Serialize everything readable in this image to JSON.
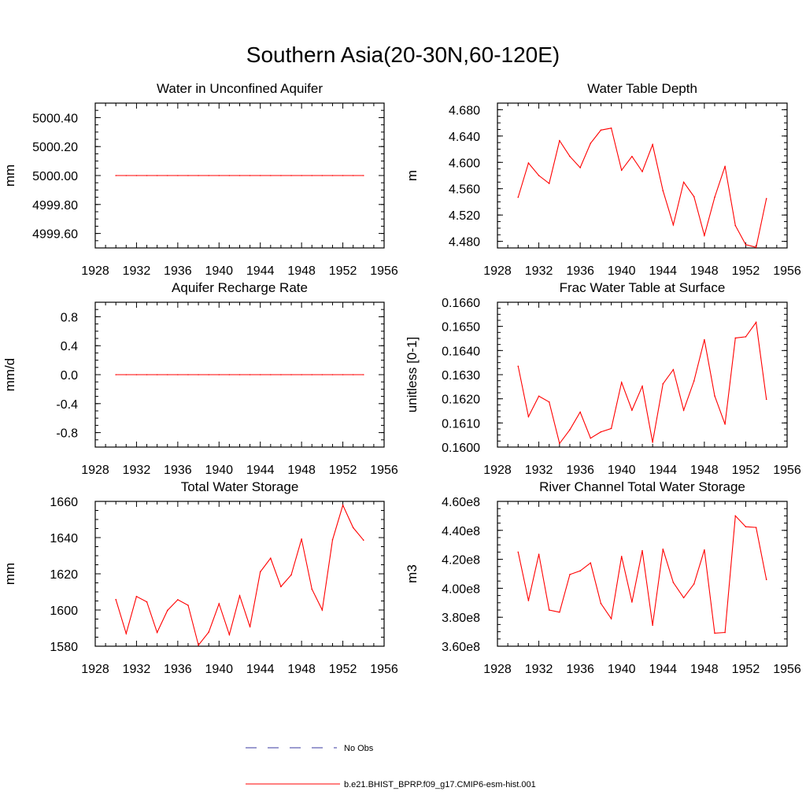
{
  "title": "Southern Asia(20-30N,60-120E)",
  "colors": {
    "model": "#ff0000",
    "obs": "#3a3aa0",
    "frame": "#000000"
  },
  "legend": [
    {
      "label": "No Obs",
      "style": "dashed",
      "color": "#3a3aa0"
    },
    {
      "label": "b.e21.BHIST_BPRP.f09_g17.CMIP6-esm-hist.001",
      "style": "solid",
      "color": "#ff0000"
    }
  ],
  "chart_data": [
    {
      "type": "line",
      "title": "Water in Unconfined Aquifer",
      "ylabel": "mm",
      "xlim": [
        1928,
        1956
      ],
      "ylim": [
        4999.5,
        5000.5
      ],
      "xticks": [
        "1928",
        "1932",
        "1936",
        "1940",
        "1944",
        "1948",
        "1952",
        "1956"
      ],
      "yticks": [
        {
          "v": 4999.6,
          "label": "4999.60"
        },
        {
          "v": 4999.8,
          "label": "4999.80"
        },
        {
          "v": 5000.0,
          "label": "5000.00"
        },
        {
          "v": 5000.2,
          "label": "5000.20"
        },
        {
          "v": 5000.4,
          "label": "5000.40"
        }
      ],
      "series": [
        {
          "name": "b.e21.BHIST_BPRP.f09_g17.CMIP6-esm-hist.001",
          "x": [
            1930,
            1931,
            1932,
            1933,
            1934,
            1935,
            1936,
            1937,
            1938,
            1939,
            1940,
            1941,
            1942,
            1943,
            1944,
            1945,
            1946,
            1947,
            1948,
            1949,
            1950,
            1951,
            1952,
            1953,
            1954
          ],
          "y": [
            5000,
            5000,
            5000,
            5000,
            5000,
            5000,
            5000,
            5000,
            5000,
            5000,
            5000,
            5000,
            5000,
            5000,
            5000,
            5000,
            5000,
            5000,
            5000,
            5000,
            5000,
            5000,
            5000,
            5000,
            5000
          ]
        }
      ]
    },
    {
      "type": "line",
      "title": "Water Table Depth",
      "ylabel": "m",
      "xlim": [
        1928,
        1956
      ],
      "ylim": [
        4.47,
        4.69
      ],
      "xticks": [
        "1928",
        "1932",
        "1936",
        "1940",
        "1944",
        "1948",
        "1952",
        "1956"
      ],
      "yticks": [
        {
          "v": 4.48,
          "label": "4.480"
        },
        {
          "v": 4.52,
          "label": "4.520"
        },
        {
          "v": 4.56,
          "label": "4.560"
        },
        {
          "v": 4.6,
          "label": "4.600"
        },
        {
          "v": 4.64,
          "label": "4.640"
        },
        {
          "v": 4.68,
          "label": "4.680"
        }
      ],
      "series": [
        {
          "name": "b.e21.BHIST_BPRP.f09_g17.CMIP6-esm-hist.001",
          "x": [
            1930,
            1931,
            1932,
            1933,
            1934,
            1935,
            1936,
            1937,
            1938,
            1939,
            1940,
            1941,
            1942,
            1943,
            1944,
            1945,
            1946,
            1947,
            1948,
            1949,
            1950,
            1951,
            1952,
            1953,
            1954
          ],
          "y": [
            4.547,
            4.599,
            4.58,
            4.568,
            4.633,
            4.609,
            4.592,
            4.629,
            4.649,
            4.652,
            4.588,
            4.609,
            4.586,
            4.627,
            4.557,
            4.505,
            4.57,
            4.548,
            4.489,
            4.547,
            4.594,
            4.504,
            4.475,
            4.471,
            4.545
          ]
        }
      ]
    },
    {
      "type": "line",
      "title": "Aquifer Recharge Rate",
      "ylabel": "mm/d",
      "xlim": [
        1928,
        1956
      ],
      "ylim": [
        -1.0,
        1.0
      ],
      "xticks": [
        "1928",
        "1932",
        "1936",
        "1940",
        "1944",
        "1948",
        "1952",
        "1956"
      ],
      "yticks": [
        {
          "v": -0.8,
          "label": "-0.8"
        },
        {
          "v": -0.4,
          "label": "-0.4"
        },
        {
          "v": 0.0,
          "label": "0.0"
        },
        {
          "v": 0.4,
          "label": "0.4"
        },
        {
          "v": 0.8,
          "label": "0.8"
        }
      ],
      "series": [
        {
          "name": "b.e21.BHIST_BPRP.f09_g17.CMIP6-esm-hist.001",
          "x": [
            1930,
            1931,
            1932,
            1933,
            1934,
            1935,
            1936,
            1937,
            1938,
            1939,
            1940,
            1941,
            1942,
            1943,
            1944,
            1945,
            1946,
            1947,
            1948,
            1949,
            1950,
            1951,
            1952,
            1953,
            1954
          ],
          "y": [
            0,
            0,
            0,
            0,
            0,
            0,
            0,
            0,
            0,
            0,
            0,
            0,
            0,
            0,
            0,
            0,
            0,
            0,
            0,
            0,
            0,
            0,
            0,
            0,
            0
          ]
        }
      ]
    },
    {
      "type": "line",
      "title": "Frac Water Table at Surface",
      "ylabel": "unitless [0-1]",
      "xlim": [
        1928,
        1956
      ],
      "ylim": [
        0.16,
        0.166
      ],
      "xticks": [
        "1928",
        "1932",
        "1936",
        "1940",
        "1944",
        "1948",
        "1952",
        "1956"
      ],
      "yticks": [
        {
          "v": 0.16,
          "label": "0.1600"
        },
        {
          "v": 0.161,
          "label": "0.1610"
        },
        {
          "v": 0.162,
          "label": "0.1620"
        },
        {
          "v": 0.163,
          "label": "0.1630"
        },
        {
          "v": 0.164,
          "label": "0.1640"
        },
        {
          "v": 0.165,
          "label": "0.1650"
        },
        {
          "v": 0.166,
          "label": "0.1660"
        }
      ],
      "series": [
        {
          "name": "b.e21.BHIST_BPRP.f09_g17.CMIP6-esm-hist.001",
          "x": [
            1930,
            1931,
            1932,
            1933,
            1934,
            1935,
            1936,
            1937,
            1938,
            1939,
            1940,
            1941,
            1942,
            1943,
            1944,
            1945,
            1946,
            1947,
            1948,
            1949,
            1950,
            1951,
            1952,
            1953,
            1954
          ],
          "y": [
            0.16335,
            0.16126,
            0.16211,
            0.16187,
            0.16015,
            0.16072,
            0.16145,
            0.16037,
            0.16063,
            0.16077,
            0.16268,
            0.16153,
            0.16252,
            0.1602,
            0.16262,
            0.16321,
            0.16153,
            0.16274,
            0.16445,
            0.16212,
            0.16095,
            0.16452,
            0.16457,
            0.16517,
            0.16198
          ]
        }
      ]
    },
    {
      "type": "line",
      "title": "Total Water Storage",
      "ylabel": "mm",
      "xlim": [
        1928,
        1956
      ],
      "ylim": [
        1580,
        1660
      ],
      "xticks": [
        "1928",
        "1932",
        "1936",
        "1940",
        "1944",
        "1948",
        "1952",
        "1956"
      ],
      "yticks": [
        {
          "v": 1580,
          "label": "1580"
        },
        {
          "v": 1600,
          "label": "1600"
        },
        {
          "v": 1620,
          "label": "1620"
        },
        {
          "v": 1640,
          "label": "1640"
        },
        {
          "v": 1660,
          "label": "1660"
        }
      ],
      "series": [
        {
          "name": "b.e21.BHIST_BPRP.f09_g17.CMIP6-esm-hist.001",
          "x": [
            1930,
            1931,
            1932,
            1933,
            1934,
            1935,
            1936,
            1937,
            1938,
            1939,
            1940,
            1941,
            1942,
            1943,
            1944,
            1945,
            1946,
            1947,
            1948,
            1949,
            1950,
            1951,
            1952,
            1953,
            1954
          ],
          "y": [
            1605.8,
            1587.0,
            1607.5,
            1604.5,
            1587.6,
            1599.8,
            1605.7,
            1602.6,
            1580.6,
            1587.8,
            1603.5,
            1586.4,
            1607.9,
            1590.7,
            1621.1,
            1628.6,
            1612.9,
            1619.4,
            1639.2,
            1611.5,
            1600.0,
            1638.8,
            1657.9,
            1645.5,
            1638.6
          ]
        }
      ]
    },
    {
      "type": "line",
      "title": "River Channel Total Water Storage",
      "ylabel": "m3",
      "xlim": [
        1928,
        1956
      ],
      "ylim": [
        360000000.0,
        460000000.0
      ],
      "xticks": [
        "1928",
        "1932",
        "1936",
        "1940",
        "1944",
        "1948",
        "1952",
        "1956"
      ],
      "yticks": [
        {
          "v": 360000000.0,
          "label": "3.60e8"
        },
        {
          "v": 380000000.0,
          "label": "3.80e8"
        },
        {
          "v": 400000000.0,
          "label": "4.00e8"
        },
        {
          "v": 420000000.0,
          "label": "4.20e8"
        },
        {
          "v": 440000000.0,
          "label": "4.40e8"
        },
        {
          "v": 460000000.0,
          "label": "4.60e8"
        }
      ],
      "series": [
        {
          "name": "b.e21.BHIST_BPRP.f09_g17.CMIP6-esm-hist.001",
          "x": [
            1930,
            1931,
            1932,
            1933,
            1934,
            1935,
            1936,
            1937,
            1938,
            1939,
            1940,
            1941,
            1942,
            1943,
            1944,
            1945,
            1946,
            1947,
            1948,
            1949,
            1950,
            1951,
            1952,
            1953,
            1954
          ],
          "y": [
            425000000.0,
            391500000.0,
            423500000.0,
            385000000.0,
            383500000.0,
            409500000.0,
            412000000.0,
            417500000.0,
            389500000.0,
            379000000.0,
            422000000.0,
            390500000.0,
            426000000.0,
            374500000.0,
            427000000.0,
            404000000.0,
            393500000.0,
            403000000.0,
            426500000.0,
            369000000.0,
            369500000.0,
            450000000.0,
            442500000.0,
            442000000.0,
            406000000.0
          ]
        }
      ]
    }
  ]
}
